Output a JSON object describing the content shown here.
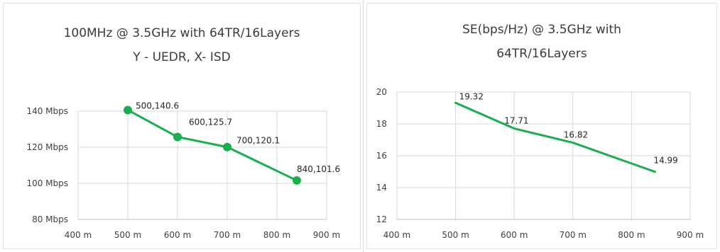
{
  "chart_data": [
    {
      "type": "scatter",
      "title": [
        "100MHz @ 3.5GHz with 64TR/16Layers",
        "Y - UEDR, X- ISD"
      ],
      "xlabel": "",
      "ylabel": "",
      "xlim": [
        400,
        900
      ],
      "ylim": [
        80,
        140
      ],
      "x_ticks": [
        400,
        500,
        600,
        700,
        800,
        900
      ],
      "x_tick_labels": [
        "400 m",
        "500 m",
        "600 m",
        "700 m",
        "800 m",
        "900 m"
      ],
      "y_ticks": [
        80,
        100,
        120,
        140
      ],
      "y_tick_labels": [
        "80 Mbps",
        "100 Mbps",
        "120 Mbps",
        "140 Mbps"
      ],
      "grid": true,
      "color": "#1aaf4e",
      "series": [
        {
          "x": [
            500,
            600,
            700,
            840
          ],
          "y": [
            140.6,
            125.7,
            120.1,
            101.6
          ],
          "labels": [
            "500,140.6",
            "600,125.7",
            "700,120.1",
            "840,101.6"
          ],
          "markers": true
        }
      ]
    },
    {
      "type": "line",
      "title": [
        "SE(bps/Hz) @ 3.5GHz with",
        "64TR/16Layers"
      ],
      "xlabel": "",
      "ylabel": "",
      "xlim": [
        400,
        900
      ],
      "ylim": [
        12,
        20
      ],
      "x_ticks": [
        400,
        500,
        600,
        700,
        800,
        900
      ],
      "x_tick_labels": [
        "400 m",
        "500 m",
        "600 m",
        "700 m",
        "800 m",
        "900 m"
      ],
      "y_ticks": [
        12,
        14,
        16,
        18,
        20
      ],
      "y_tick_labels": [
        "12",
        "14",
        "16",
        "18",
        "20"
      ],
      "grid": true,
      "color": "#1aaf4e",
      "series": [
        {
          "x": [
            500,
            600,
            700,
            840
          ],
          "y": [
            19.32,
            17.71,
            16.82,
            14.99
          ],
          "labels": [
            "19.32",
            "17.71",
            "16.82",
            "14.99"
          ],
          "markers": false
        }
      ]
    }
  ]
}
